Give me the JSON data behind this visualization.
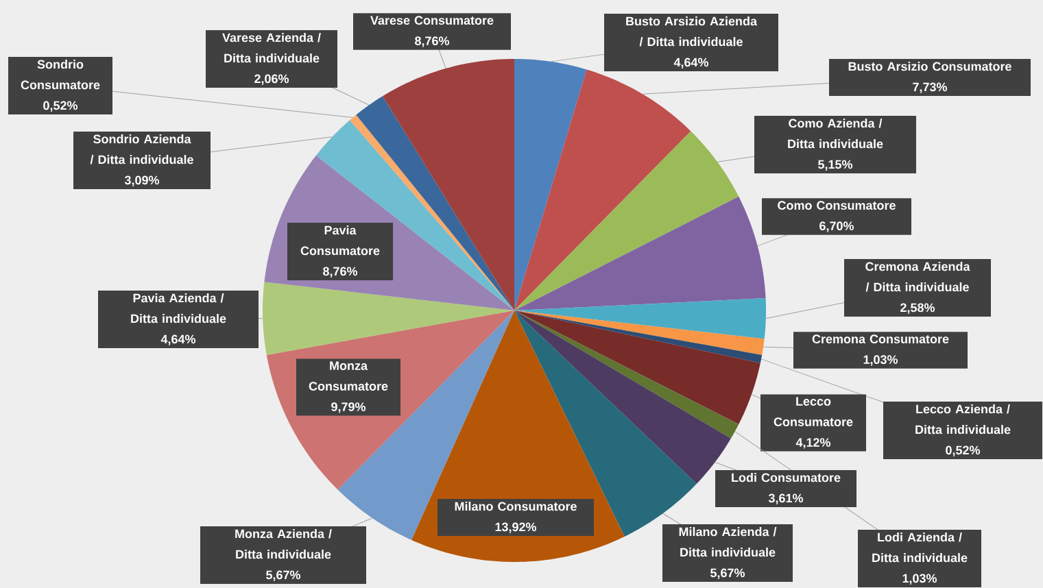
{
  "chart_data": {
    "type": "pie",
    "categories": [
      "Busto Arsizio Azienda / Ditta individuale",
      "Busto Arsizio Consumatore",
      "Como Azienda / Ditta individuale",
      "Como Consumatore",
      "Cremona Azienda / Ditta individuale",
      "Cremona Consumatore",
      "Lecco Azienda / Ditta individuale",
      "Lecco Consumatore",
      "Lodi Azienda / Ditta individuale",
      "Lodi Consumatore",
      "Milano Azienda / Ditta individuale",
      "Milano Consumatore",
      "Monza Azienda / Ditta individuale",
      "Monza Consumatore",
      "Pavia Azienda / Ditta individuale",
      "Pavia Consumatore",
      "Sondrio Azienda / Ditta individuale",
      "Sondrio Consumatore",
      "Varese Azienda / Ditta individuale",
      "Varese Consumatore"
    ],
    "values": [
      4.64,
      7.73,
      5.15,
      6.7,
      2.58,
      1.03,
      0.52,
      4.12,
      1.03,
      3.61,
      5.67,
      13.92,
      5.67,
      9.79,
      4.64,
      8.76,
      3.09,
      0.52,
      2.06,
      8.76
    ],
    "value_labels": [
      "4,64%",
      "7,73%",
      "5,15%",
      "6,70%",
      "2,58%",
      "1,03%",
      "0,52%",
      "4,12%",
      "1,03%",
      "3,61%",
      "5,67%",
      "13,92%",
      "5,67%",
      "9,79%",
      "4,64%",
      "8,76%",
      "3,09%",
      "0,52%",
      "2,06%",
      "8,76%"
    ],
    "colors": [
      "#4f81bd",
      "#c0504d",
      "#9bbb59",
      "#8064a2",
      "#4bacc6",
      "#f79646",
      "#2c4d75",
      "#772c2a",
      "#5f7530",
      "#4d3b62",
      "#276a7c",
      "#b65708",
      "#729aca",
      "#cd7371",
      "#afc97a",
      "#9983b5",
      "#6fbdd1",
      "#f9ab6b",
      "#3a679c",
      "#9e413e"
    ]
  }
}
